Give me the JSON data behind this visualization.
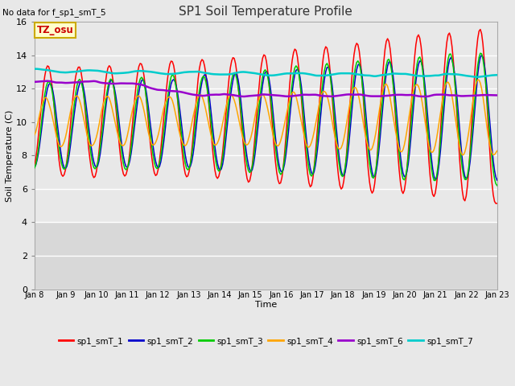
{
  "title": "SP1 Soil Temperature Profile",
  "xlabel": "Time",
  "ylabel": "Soil Temperature (C)",
  "no_data_text": "No data for f_sp1_smT_5",
  "tz_label": "TZ_osu",
  "ylim": [
    0,
    16
  ],
  "yticks": [
    0,
    2,
    4,
    6,
    8,
    10,
    12,
    14,
    16
  ],
  "x_tick_labels": [
    "Jan 8",
    "Jan 9",
    "Jan 10",
    "Jan 11",
    "Jan 12",
    "Jan 13",
    "Jan 14",
    "Jan 15",
    "Jan 16",
    "Jan 17",
    "Jan 18",
    "Jan 19",
    "Jan 20",
    "Jan 21",
    "Jan 22",
    "Jan 23"
  ],
  "colors": {
    "sp1_smT_1": "#ff0000",
    "sp1_smT_2": "#0000cc",
    "sp1_smT_3": "#00cc00",
    "sp1_smT_4": "#ffa500",
    "sp1_smT_6": "#9900cc",
    "sp1_smT_7": "#00cccc"
  },
  "active_bg": "#e8e8e8",
  "inactive_bg": "#d8d8d8",
  "fig_bg": "#e8e8e8",
  "grid_color": "#ffffff",
  "legend_labels": [
    "sp1_smT_1",
    "sp1_smT_2",
    "sp1_smT_3",
    "sp1_smT_4",
    "sp1_smT_6",
    "sp1_smT_7"
  ]
}
